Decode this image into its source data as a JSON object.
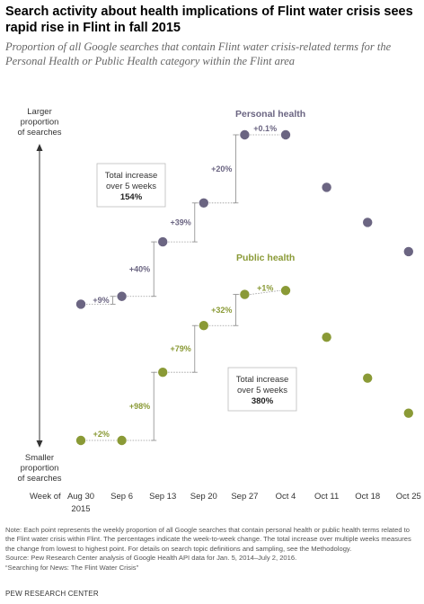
{
  "title": "Search activity about health implications of Flint water crisis sees rapid rise in Flint in fall 2015",
  "subtitle": "Proportion of all Google searches that contain Flint water crisis-related terms for the Personal Health or Public Health category within the Flint area",
  "axis": {
    "y_top_label": [
      "Larger",
      "proportion",
      "of searches"
    ],
    "y_bottom_label": [
      "Smaller",
      "proportion",
      "of searches"
    ],
    "week_of_label": "Week of",
    "year_label": "2015"
  },
  "chart_data": {
    "type": "scatter",
    "categories": [
      "Aug 30",
      "Sep 6",
      "Sep 13",
      "Sep 20",
      "Sep 27",
      "Oct 4",
      "Oct 11",
      "Oct 18",
      "Oct 25"
    ],
    "series": [
      {
        "name": "Personal health",
        "color": "#6b6582",
        "values": [
          0.18,
          0.22,
          0.5,
          0.7,
          1.05,
          1.05,
          0.78,
          0.6,
          0.45
        ],
        "changes": [
          "",
          "+9%",
          "+40%",
          "+39%",
          "+20%",
          "+0.1%",
          "",
          "",
          ""
        ],
        "total_increase": "154%"
      },
      {
        "name": "Public health",
        "color": "#8a9a36",
        "values": [
          -0.52,
          -0.52,
          -0.17,
          0.07,
          0.23,
          0.25,
          0.01,
          -0.2,
          -0.38
        ],
        "changes": [
          "",
          "+2%",
          "+98%",
          "+79%",
          "+32%",
          "+1%",
          "",
          "",
          ""
        ],
        "total_increase": "380%"
      }
    ],
    "total_increase_label": [
      "Total increase",
      "over 5 weeks"
    ]
  },
  "notes": [
    "Note: Each point represents the weekly proportion of all Google searches that contain personal health or public health terms related to the Flint water crisis within Flint. The percentages indicate the week-to-week change. The total increase over multiple weeks measures the change from lowest to highest point. For details on search topic definitions and sampling, see the Methodology.",
    "Source: Pew Research Center analysis of Google Health API data for Jan. 5, 2014–July 2, 2016.",
    "“Searching for News: The Flint Water Crisis”"
  ],
  "footer": "PEW RESEARCH CENTER"
}
